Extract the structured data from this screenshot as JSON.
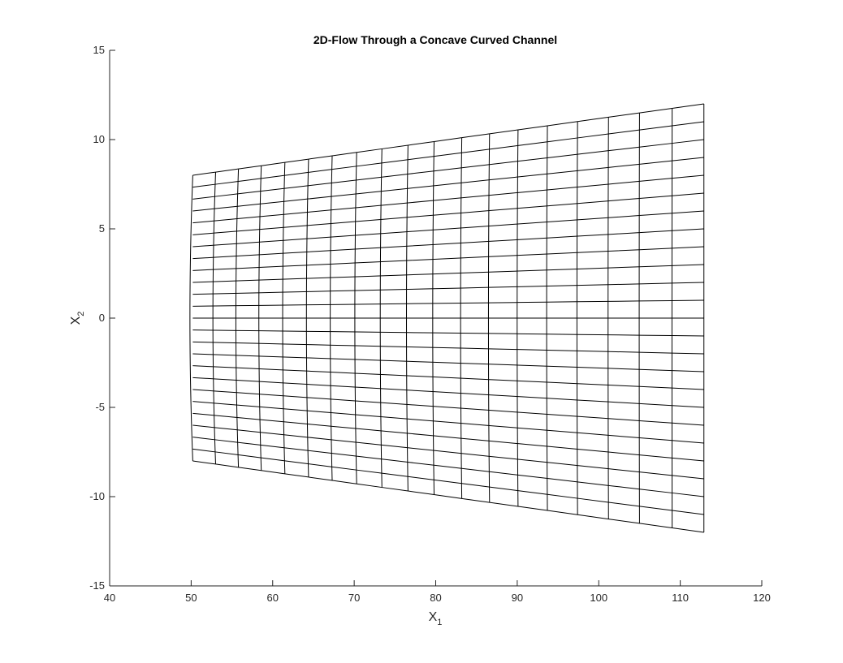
{
  "chart_data": {
    "type": "line",
    "title": "2D-Flow Through a Concave Curved Channel",
    "xlabel": {
      "base": "X",
      "sub": "1"
    },
    "ylabel": {
      "base": "X",
      "sub": "2"
    },
    "xlim": [
      40,
      120
    ],
    "ylim": [
      -15,
      15
    ],
    "xticks": [
      40,
      50,
      60,
      70,
      80,
      90,
      100,
      110,
      120
    ],
    "yticks": [
      -15,
      -10,
      -5,
      0,
      5,
      10,
      15
    ],
    "grid": false,
    "legend": "none",
    "line_color": "#000000",
    "mesh": {
      "x_stations": [
        50.2,
        53.0,
        55.8,
        58.6,
        61.5,
        64.4,
        67.3,
        70.3,
        73.4,
        76.6,
        79.8,
        83.2,
        86.6,
        90.1,
        93.7,
        97.4,
        101.2,
        105.0,
        109.0,
        112.9
      ],
      "inlet_half_height": 8,
      "outlet_half_height": 12,
      "rows": 25
    }
  }
}
